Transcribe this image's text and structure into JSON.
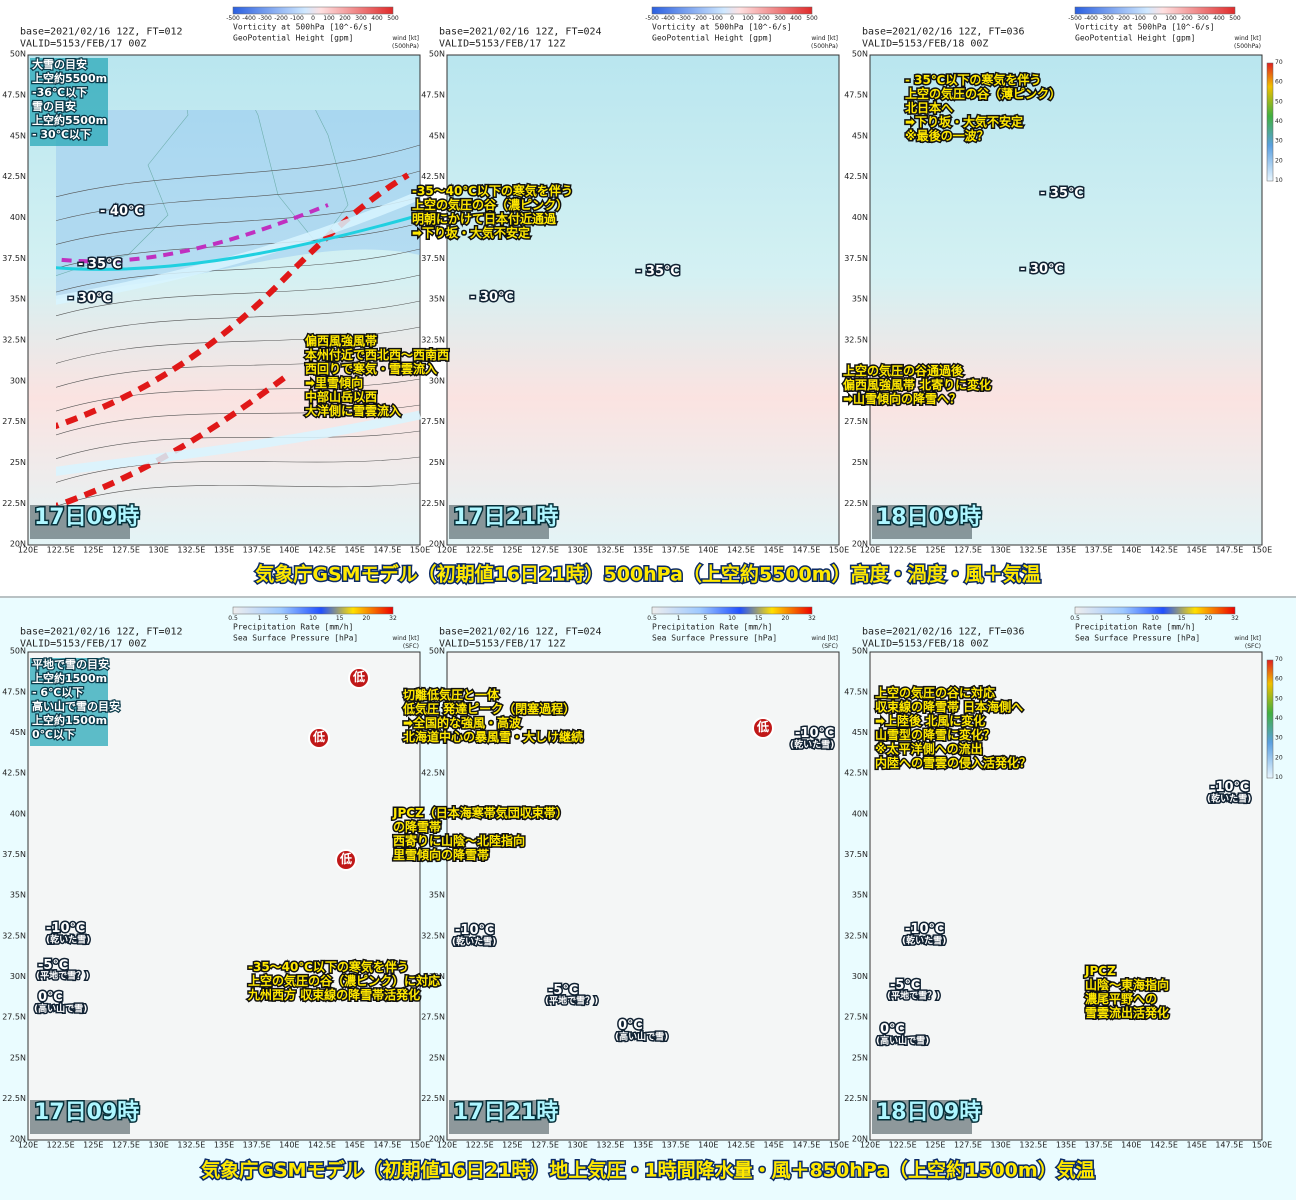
{
  "lat_labels": [
    "50N",
    "47.5N",
    "45N",
    "42.5N",
    "40N",
    "37.5N",
    "35N",
    "32.5N",
    "30N",
    "27.5N",
    "25N",
    "22.5N",
    "20N"
  ],
  "lon_labels": [
    "120E",
    "122.5E",
    "125E",
    "127.5E",
    "130E",
    "132.5E",
    "135E",
    "137.5E",
    "140E",
    "142.5E",
    "145E",
    "147.5E",
    "150E"
  ],
  "upper": {
    "caption": "気象庁GSMモデル（初期値16日21時）500hPa（上空約5500m）高度・渦度・風＋気温",
    "colorbar_ticks": [
      "-500",
      "-400",
      "-300",
      "-200",
      "-100",
      "0",
      "100",
      "200",
      "300",
      "400",
      "500"
    ],
    "colorbar_title": "Vorticity at 500hPa [10^-6/s]",
    "contour_title": "GeoPotential Height [gpm]",
    "wind_title": "wind [kt]",
    "wind_level": "(500hPa)",
    "wind_ticks": [
      "70",
      "60",
      "50",
      "40",
      "30",
      "20",
      "10"
    ],
    "panels": [
      {
        "base": "base=2021/02/16 12Z, FT=012",
        "valid": "VALID=5153/FEB/17 00Z",
        "time": "17日09時",
        "box": [
          "大雪の目安",
          "上空約5500m",
          "-36℃以下",
          "雪の目安",
          "上空約5500m",
          "- 30℃以下"
        ],
        "labels": [
          "- 40℃",
          "- 35℃",
          "- 30℃"
        ],
        "annotations": [
          [
            "偏西風強風帯",
            "本州付近で西北西～西南西",
            "西回りで寒気・雪雲流入",
            "➡里雪傾向",
            "中部山岳以西",
            "大洋側に雪雲流入"
          ]
        ]
      },
      {
        "base": "base=2021/02/16 12Z, FT=024",
        "valid": "VALID=5153/FEB/17 12Z",
        "time": "17日21時",
        "box": [],
        "labels": [
          "- 35℃",
          "- 30℃"
        ],
        "annotations": [
          [
            "-35～40℃以下の寒気を伴う",
            "上空の気圧の谷（濃ピンク）",
            "明朝にかけて日本付近通過",
            "➡下り坂・大気不安定"
          ]
        ]
      },
      {
        "base": "base=2021/02/16 12Z, FT=036",
        "valid": "VALID=5153/FEB/18 00Z",
        "time": "18日09時",
        "box": [],
        "labels": [
          "- 35℃",
          "- 30℃"
        ],
        "annotations": [
          [
            "- 35℃以下の寒気を伴う",
            "上空の気圧の谷（薄ピンク）",
            "北日本へ",
            "➡下り坂・大気不安定",
            "※最後の一波？"
          ],
          [
            "上空の気圧の谷通過後",
            "偏西風強風帯 北寄りに変化",
            "➡山雪傾向の降雪へ？"
          ]
        ]
      }
    ]
  },
  "lower": {
    "caption": "気象庁GSMモデル（初期値16日21時）地上気圧・1時間降水量・風＋850hPa（上空約1500m）気温",
    "colorbar_ticks": [
      "0.5",
      "1",
      "5",
      "10",
      "15",
      "20",
      "32"
    ],
    "colorbar_title": "Precipitation Rate [mm/h]",
    "contour_title": "Sea Surface Pressure [hPa]",
    "wind_title": "wind [kt]",
    "wind_level": "(SFC)",
    "wind_ticks": [
      "70",
      "60",
      "50",
      "40",
      "30",
      "20",
      "10"
    ],
    "panels": [
      {
        "base": "base=2021/02/16 12Z, FT=012",
        "valid": "VALID=5153/FEB/17 00Z",
        "time": "17日09時",
        "box": [
          "平地で雪の目安",
          "上空約1500m",
          "- 6℃以下",
          "高い山で雪の目安",
          "上空約1500m",
          "0℃以下"
        ],
        "labels": [
          "低",
          "低",
          "低",
          "-10℃",
          "(乾いた雪)",
          "-5℃",
          "(平地で雪？)",
          "0℃",
          "(高い山で雪)"
        ],
        "annotations": [
          [
            "切離低気圧と一体",
            "低気圧 発達ピーク（閉塞過程）",
            "➡全国的な強風・高波",
            "北海道中心の暴風雪・大しけ継続"
          ],
          [
            "JPCZ（日本海寒帯気団収束帯）",
            "の降雪帯",
            "西寄りに山陰～北陸指向",
            "里雪傾向の降雪帯"
          ],
          [
            "-35～40℃以下の寒気を伴う",
            "上空の気圧の谷（濃ピンク）に対応",
            "九州西方 収束線の降雪帯活発化"
          ]
        ]
      },
      {
        "base": "base=2021/02/16 12Z, FT=024",
        "valid": "VALID=5153/FEB/17 12Z",
        "time": "17日21時",
        "box": [],
        "labels": [
          "低",
          "-10℃",
          "(乾いた雪)",
          "-10℃",
          "(乾いた雪)",
          "-5℃",
          "(平地で雪？)",
          "0℃",
          "(高い山で雪)"
        ],
        "annotations": []
      },
      {
        "base": "base=2021/02/16 12Z, FT=036",
        "valid": "VALID=5153/FEB/18 00Z",
        "time": "18日09時",
        "box": [],
        "labels": [
          "-10℃",
          "(乾いた雪)",
          "-5℃",
          "(平地で雪？)",
          "0℃",
          "(高い山で雪)",
          "-10℃",
          "(乾いた雪)"
        ],
        "annotations": [
          [
            "上空の気圧の谷に対応",
            "収束線の降雪帯 日本海側へ",
            "➡上陸後 北風に変化",
            "山雪型の降雪に変化？",
            "※太平洋側への流出",
            "内陸への雪雲の侵入活発化？"
          ],
          [
            "JPCZ",
            "山陰～東海指向",
            "濃尾平野への",
            "雪雲流出活発化"
          ]
        ]
      }
    ]
  }
}
